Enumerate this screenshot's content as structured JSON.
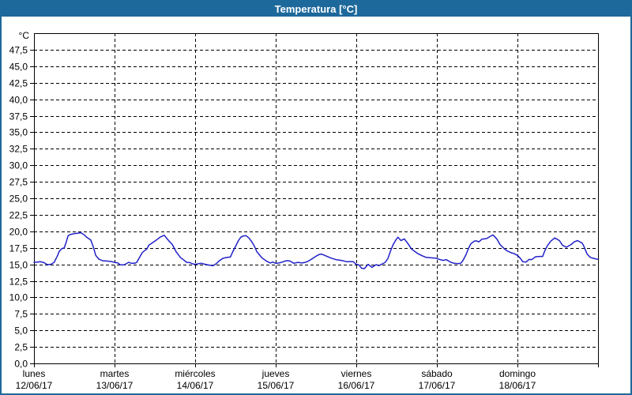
{
  "window": {
    "title": "Temperatura [°C]"
  },
  "colors": {
    "titlebar": "#1e699b",
    "title_text": "#ffffff",
    "plot_background": "#ffffff",
    "grid": "#000000",
    "axis": "#000000",
    "line": "#2121c8"
  },
  "chart_data": {
    "type": "line",
    "title": "Temperatura [°C]",
    "y_unit_label": "°C",
    "ylim": [
      0,
      50
    ],
    "y_tick_step": 2.5,
    "y_tick_labels": [
      "0,0",
      "2,5",
      "5,0",
      "7,5",
      "10,0",
      "12,5",
      "15,0",
      "17,5",
      "20,0",
      "22,5",
      "25,0",
      "27,5",
      "30,0",
      "32,5",
      "35,0",
      "37,5",
      "40,0",
      "42,5",
      "45,0",
      "47,5"
    ],
    "x_range_hours": [
      0,
      168
    ],
    "x_days": [
      {
        "name": "lunes",
        "date": "12/06/17"
      },
      {
        "name": "martes",
        "date": "13/06/17"
      },
      {
        "name": "miércoles",
        "date": "14/06/17"
      },
      {
        "name": "jueves",
        "date": "15/06/17"
      },
      {
        "name": "viernes",
        "date": "16/06/17"
      },
      {
        "name": "sábado",
        "date": "17/06/17"
      },
      {
        "name": "domingo",
        "date": "18/06/17"
      }
    ],
    "grid": true,
    "legend": false,
    "series": [
      {
        "name": "Temperatura",
        "color": "#2121c8",
        "points_hours_vs_celsius": [
          [
            0,
            15.3
          ],
          [
            1,
            15.35
          ],
          [
            2,
            15.4
          ],
          [
            3,
            15.25
          ],
          [
            4,
            14.95
          ],
          [
            5,
            15.0
          ],
          [
            6,
            15.3
          ],
          [
            7,
            16.3
          ],
          [
            7.5,
            16.95
          ],
          [
            8.2,
            17.35
          ],
          [
            9,
            17.5
          ],
          [
            9.5,
            18.2
          ],
          [
            10.2,
            19.35
          ],
          [
            11,
            19.55
          ],
          [
            12,
            19.65
          ],
          [
            13,
            19.7
          ],
          [
            13.9,
            19.8
          ],
          [
            15,
            19.45
          ],
          [
            15.7,
            19.1
          ],
          [
            16.9,
            18.7
          ],
          [
            17.6,
            17.75
          ],
          [
            18.4,
            16.35
          ],
          [
            19.3,
            15.8
          ],
          [
            20.4,
            15.55
          ],
          [
            21.5,
            15.5
          ],
          [
            22.5,
            15.45
          ],
          [
            23.3,
            15.4
          ],
          [
            24,
            15.3
          ],
          [
            25,
            15.2
          ],
          [
            25.6,
            14.95
          ],
          [
            26.5,
            14.9
          ],
          [
            27,
            14.95
          ],
          [
            28.2,
            15.3
          ],
          [
            29,
            15.15
          ],
          [
            30,
            15.15
          ],
          [
            30.6,
            15.3
          ],
          [
            31.5,
            16.1
          ],
          [
            32.2,
            16.75
          ],
          [
            33,
            17.1
          ],
          [
            33.6,
            17.3
          ],
          [
            34.2,
            17.9
          ],
          [
            35.4,
            18.3
          ],
          [
            36.5,
            18.7
          ],
          [
            37.7,
            19.15
          ],
          [
            38.8,
            19.4
          ],
          [
            40.1,
            18.6
          ],
          [
            41.2,
            18.0
          ],
          [
            42.4,
            16.85
          ],
          [
            43.6,
            16.05
          ],
          [
            44.5,
            15.7
          ],
          [
            45.5,
            15.3
          ],
          [
            46.5,
            15.25
          ],
          [
            47.1,
            15.1
          ],
          [
            48,
            15.0
          ],
          [
            49,
            15.1
          ],
          [
            49.9,
            15.15
          ],
          [
            51,
            15.0
          ],
          [
            52.5,
            14.85
          ],
          [
            53.4,
            14.8
          ],
          [
            54.3,
            15.1
          ],
          [
            55.1,
            15.5
          ],
          [
            56.2,
            15.9
          ],
          [
            57,
            16.0
          ],
          [
            57.6,
            16.05
          ],
          [
            58.5,
            16.1
          ],
          [
            59.3,
            17.0
          ],
          [
            60.2,
            17.9
          ],
          [
            60.9,
            18.6
          ],
          [
            61.6,
            19.1
          ],
          [
            62.3,
            19.3
          ],
          [
            63.1,
            19.35
          ],
          [
            64,
            19.0
          ],
          [
            64.9,
            18.4
          ],
          [
            65.6,
            17.8
          ],
          [
            66.4,
            16.9
          ],
          [
            67.2,
            16.4
          ],
          [
            68,
            15.95
          ],
          [
            69.2,
            15.5
          ],
          [
            70.4,
            15.2
          ],
          [
            71.1,
            15.35
          ],
          [
            72,
            15.15
          ],
          [
            73,
            15.2
          ],
          [
            74,
            15.35
          ],
          [
            74.8,
            15.5
          ],
          [
            75.5,
            15.55
          ],
          [
            76.2,
            15.5
          ],
          [
            77.4,
            15.15
          ],
          [
            78.6,
            15.3
          ],
          [
            79.8,
            15.2
          ],
          [
            80.8,
            15.3
          ],
          [
            81.8,
            15.5
          ],
          [
            83,
            15.9
          ],
          [
            84.2,
            16.3
          ],
          [
            85,
            16.5
          ],
          [
            85.6,
            16.55
          ],
          [
            86.4,
            16.4
          ],
          [
            87.3,
            16.2
          ],
          [
            88.5,
            15.95
          ],
          [
            90,
            15.7
          ],
          [
            91.5,
            15.6
          ],
          [
            93.2,
            15.4
          ],
          [
            95.1,
            15.4
          ],
          [
            96,
            15.0
          ],
          [
            96.8,
            14.9
          ],
          [
            97.6,
            14.4
          ],
          [
            98.4,
            14.35
          ],
          [
            99.5,
            15.0
          ],
          [
            100.7,
            14.55
          ],
          [
            101.9,
            14.95
          ],
          [
            102.7,
            14.8
          ],
          [
            103.5,
            15.0
          ],
          [
            104.6,
            15.3
          ],
          [
            105.4,
            15.85
          ],
          [
            106.2,
            17.0
          ],
          [
            107,
            18.0
          ],
          [
            107.8,
            18.7
          ],
          [
            108.4,
            19.1
          ],
          [
            109.3,
            18.6
          ],
          [
            110.3,
            18.85
          ],
          [
            111.3,
            18.2
          ],
          [
            112.5,
            17.3
          ],
          [
            113.4,
            16.95
          ],
          [
            114.4,
            16.6
          ],
          [
            115.6,
            16.3
          ],
          [
            116.8,
            16.05
          ],
          [
            118.1,
            16.0
          ],
          [
            119.5,
            15.95
          ],
          [
            120,
            15.9
          ],
          [
            120.7,
            15.75
          ],
          [
            121.9,
            15.6
          ],
          [
            122.8,
            15.7
          ],
          [
            124.2,
            15.3
          ],
          [
            125.2,
            15.15
          ],
          [
            126.2,
            15.1
          ],
          [
            127.1,
            15.15
          ],
          [
            127.8,
            15.6
          ],
          [
            128.7,
            16.5
          ],
          [
            129.4,
            17.4
          ],
          [
            130.1,
            18.1
          ],
          [
            131.1,
            18.5
          ],
          [
            131.8,
            18.55
          ],
          [
            132.5,
            18.4
          ],
          [
            133.4,
            18.8
          ],
          [
            134.1,
            18.85
          ],
          [
            134.8,
            18.9
          ],
          [
            135.8,
            19.2
          ],
          [
            136.7,
            19.45
          ],
          [
            137.9,
            18.8
          ],
          [
            138.8,
            18.0
          ],
          [
            139.8,
            17.5
          ],
          [
            140.7,
            17.1
          ],
          [
            141.9,
            16.8
          ],
          [
            143.1,
            16.6
          ],
          [
            144,
            16.35
          ],
          [
            144.8,
            15.95
          ],
          [
            145.6,
            15.4
          ],
          [
            146.6,
            15.35
          ],
          [
            147.5,
            15.75
          ],
          [
            148.2,
            15.7
          ],
          [
            149.4,
            16.15
          ],
          [
            150.6,
            16.2
          ],
          [
            151.5,
            16.2
          ],
          [
            152.2,
            17.1
          ],
          [
            152.9,
            17.8
          ],
          [
            153.9,
            18.5
          ],
          [
            155.1,
            19.0
          ],
          [
            156.5,
            18.6
          ],
          [
            157.4,
            17.9
          ],
          [
            158.6,
            17.6
          ],
          [
            160,
            18.0
          ],
          [
            160.9,
            18.4
          ],
          [
            161.9,
            18.6
          ],
          [
            163.3,
            18.2
          ],
          [
            163.8,
            17.7
          ],
          [
            164.2,
            17.2
          ],
          [
            164.7,
            16.6
          ],
          [
            165.4,
            16.2
          ],
          [
            165.9,
            16.0
          ],
          [
            167.1,
            15.85
          ],
          [
            168,
            15.75
          ]
        ]
      }
    ]
  }
}
